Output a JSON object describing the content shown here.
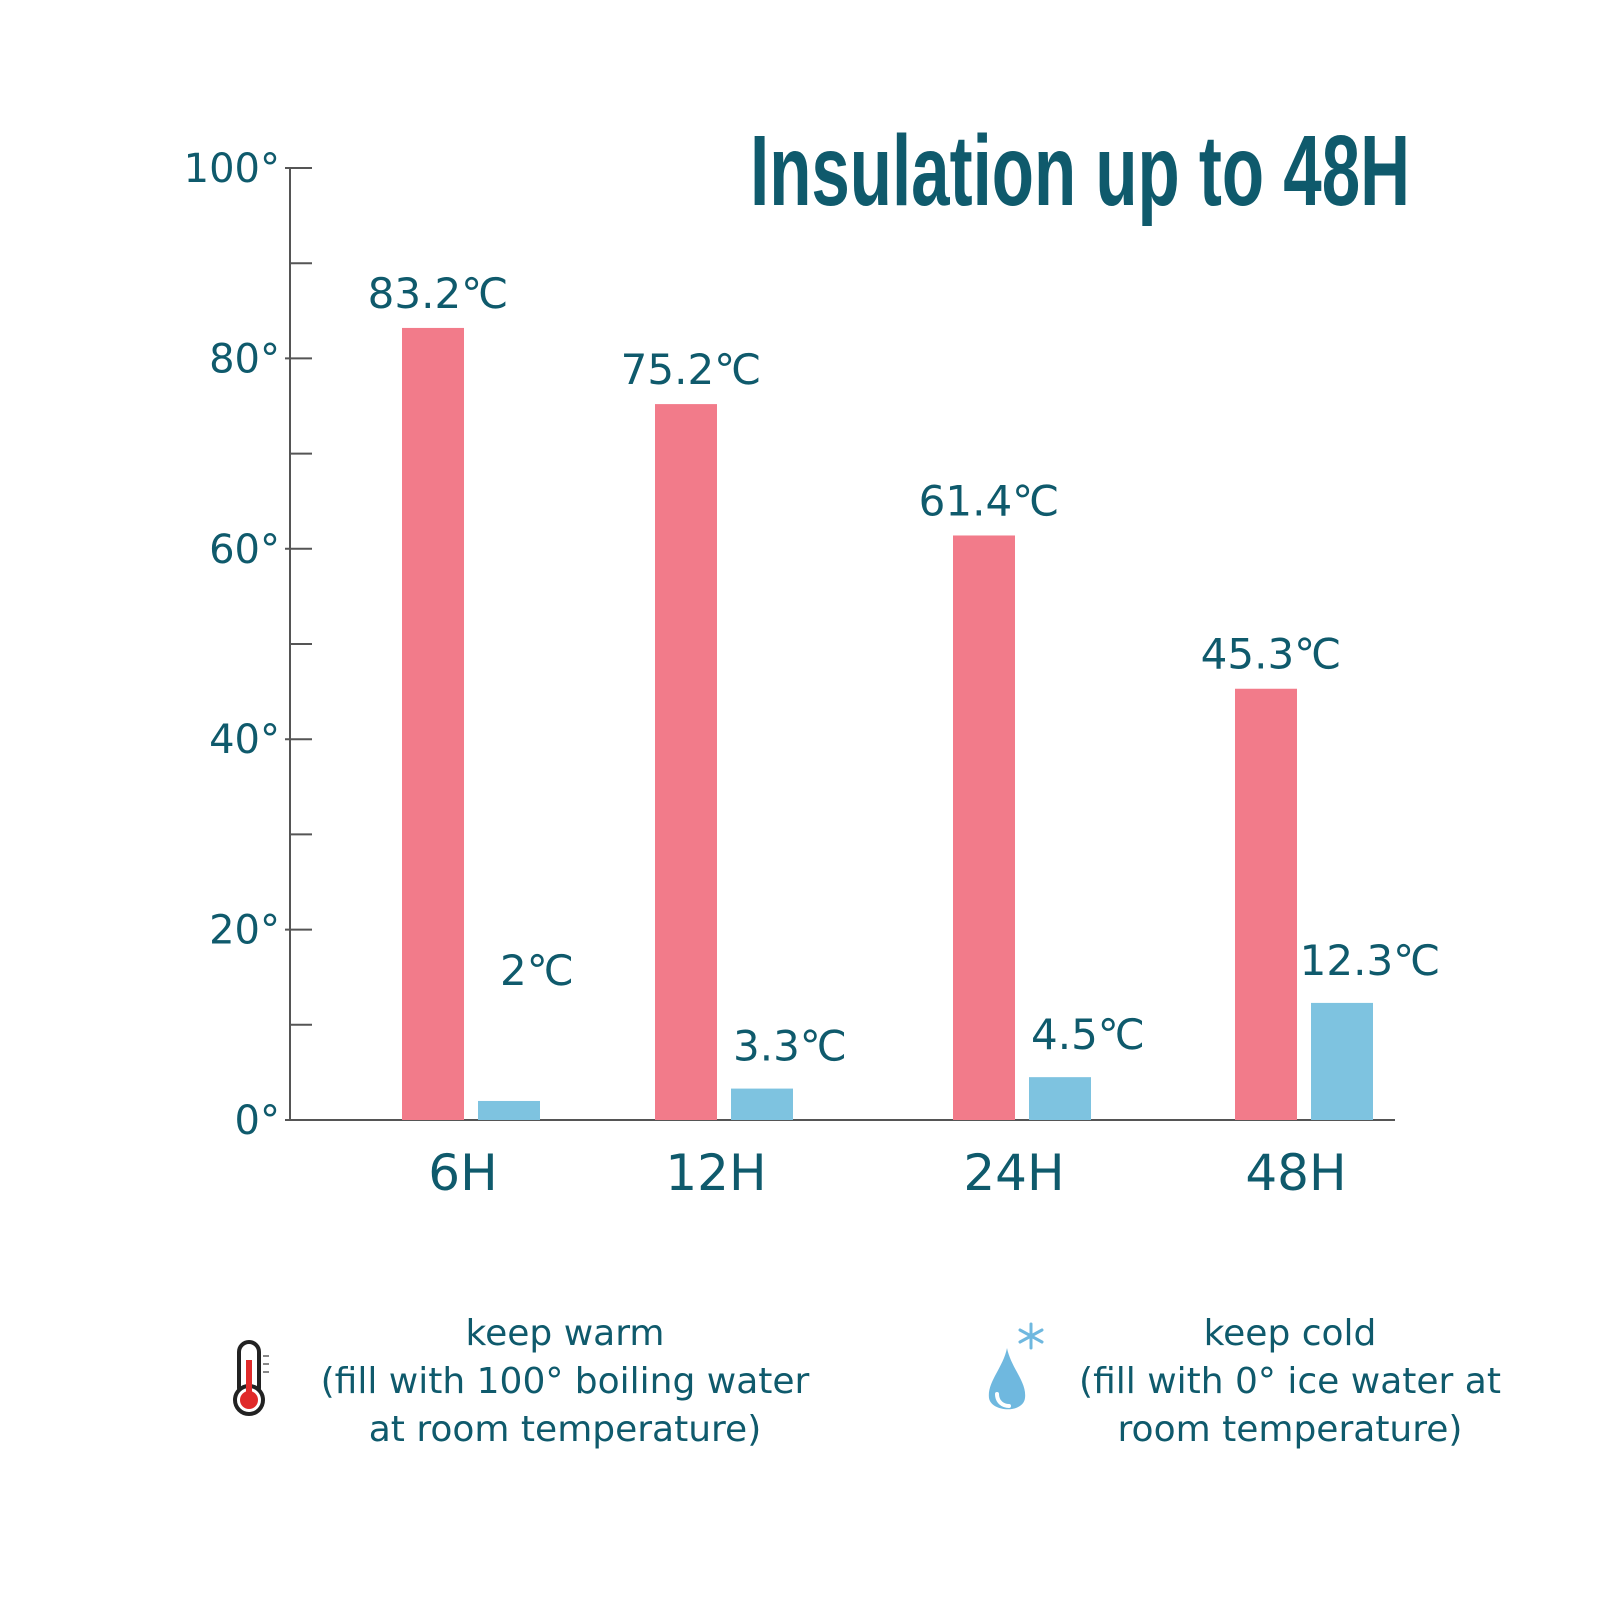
{
  "chart_data": {
    "type": "bar",
    "title": "Insulation up to 48H",
    "categories": [
      "6H",
      "12H",
      "24H",
      "48H"
    ],
    "series": [
      {
        "key": "warm",
        "values": [
          83.2,
          75.2,
          61.4,
          45.3
        ],
        "labels": [
          "83.2℃",
          "75.2℃",
          "61.4℃",
          "45.3℃"
        ],
        "color": "#f27b8a"
      },
      {
        "key": "cold",
        "values": [
          2,
          3.3,
          4.5,
          12.3
        ],
        "labels": [
          "2℃",
          "3.3℃",
          "4.5℃",
          "12.3℃"
        ],
        "color": "#7ec3e0"
      }
    ],
    "ylim": [
      0,
      100
    ],
    "yticks": [
      0,
      20,
      40,
      60,
      80,
      100
    ],
    "ytick_labels": [
      "0°",
      "20°",
      "40°",
      "60°",
      "80°",
      "100°"
    ],
    "minor_ticks": [
      10,
      30,
      50,
      70,
      90
    ],
    "text_color": "#0f5a6c",
    "grid": false
  },
  "legend": {
    "warm": {
      "line1": "keep warm",
      "line2": "(fill with 100° boiling water",
      "line3": "at room temperature)",
      "icon": "thermometer-icon"
    },
    "cold": {
      "line1": "keep cold",
      "line2": "(fill with 0° ice water at",
      "line3": "room temperature)",
      "icon": "water-drop-snowflake-icon"
    }
  }
}
